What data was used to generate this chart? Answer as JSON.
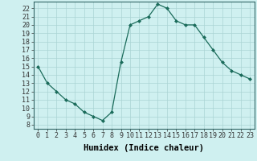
{
  "x": [
    0,
    1,
    2,
    3,
    4,
    5,
    6,
    7,
    8,
    9,
    10,
    11,
    12,
    13,
    14,
    15,
    16,
    17,
    18,
    19,
    20,
    21,
    22,
    23
  ],
  "y": [
    15,
    13,
    12,
    11,
    10.5,
    9.5,
    9,
    8.5,
    9.5,
    15.5,
    20,
    20.5,
    21,
    22.5,
    22,
    20.5,
    20,
    20,
    18.5,
    17,
    15.5,
    14.5,
    14,
    13.5
  ],
  "line_color": "#1a6b5a",
  "marker": "D",
  "marker_size": 2,
  "background_color": "#cff0f0",
  "grid_color": "#aad4d4",
  "xlabel": "Humidex (Indice chaleur)",
  "xlabel_fontsize": 7.5,
  "ytick_min": 8,
  "ytick_max": 22,
  "xtick_labels": [
    "0",
    "1",
    "2",
    "3",
    "4",
    "5",
    "6",
    "7",
    "8",
    "9",
    "10",
    "11",
    "12",
    "13",
    "14",
    "15",
    "16",
    "17",
    "18",
    "19",
    "20",
    "21",
    "22",
    "23"
  ],
  "ylim": [
    7.5,
    22.8
  ],
  "xlim": [
    -0.5,
    23.5
  ],
  "tick_fontsize": 6,
  "linewidth": 0.9
}
